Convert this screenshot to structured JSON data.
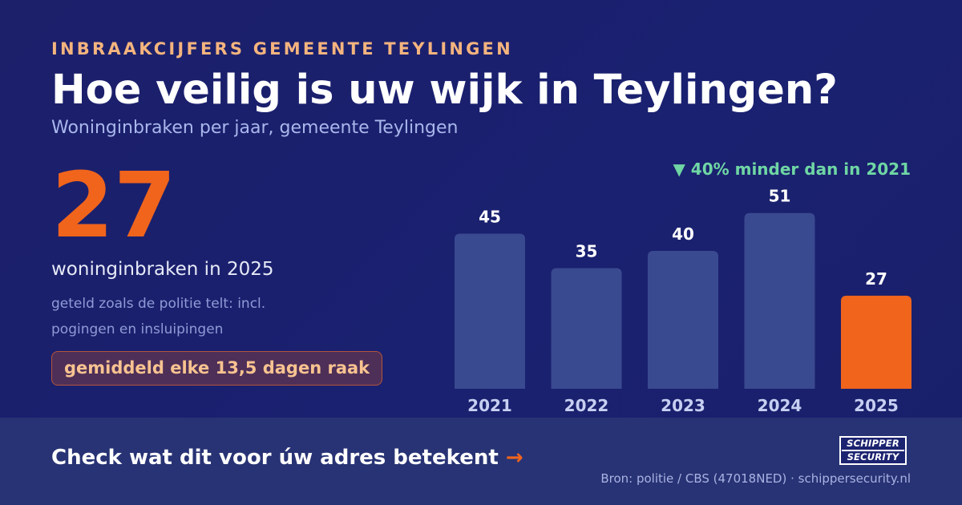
{
  "header": {
    "eyebrow": "INBRAAKCIJFERS GEMEENTE TEYLINGEN",
    "title": "Hoe veilig is uw wijk in Teylingen?",
    "subtitle": "Woninginbraken per jaar, gemeente Teylingen"
  },
  "highlight": {
    "value": "27",
    "caption": "woninginbraken in 2025",
    "note": "geteld zoals de politie telt: incl. pogingen en insluipingen",
    "pill": "gemiddeld elke 13,5 dagen raak"
  },
  "change_badge": "▼ 40% minder dan in 2021",
  "chart_data": {
    "type": "bar",
    "categories": [
      "2021",
      "2022",
      "2023",
      "2024",
      "2025"
    ],
    "values": [
      45,
      35,
      40,
      51,
      27
    ],
    "highlight_category": "2025",
    "bar_color": "#3a4a90",
    "highlight_color": "#f0641c",
    "value_labels": true,
    "grid": false
  },
  "footer": {
    "cta": "Check wat dit voor úw adres betekent",
    "cta_arrow": "→",
    "logo_line1": "SCHIPPER",
    "logo_line2": "SECURITY",
    "source": "Bron: politie / CBS (47018NED) · schippersecurity.nl"
  },
  "colors": {
    "accent": "#f0641c",
    "eyebrow": "#f4b47e",
    "positive": "#6fd6a4"
  }
}
